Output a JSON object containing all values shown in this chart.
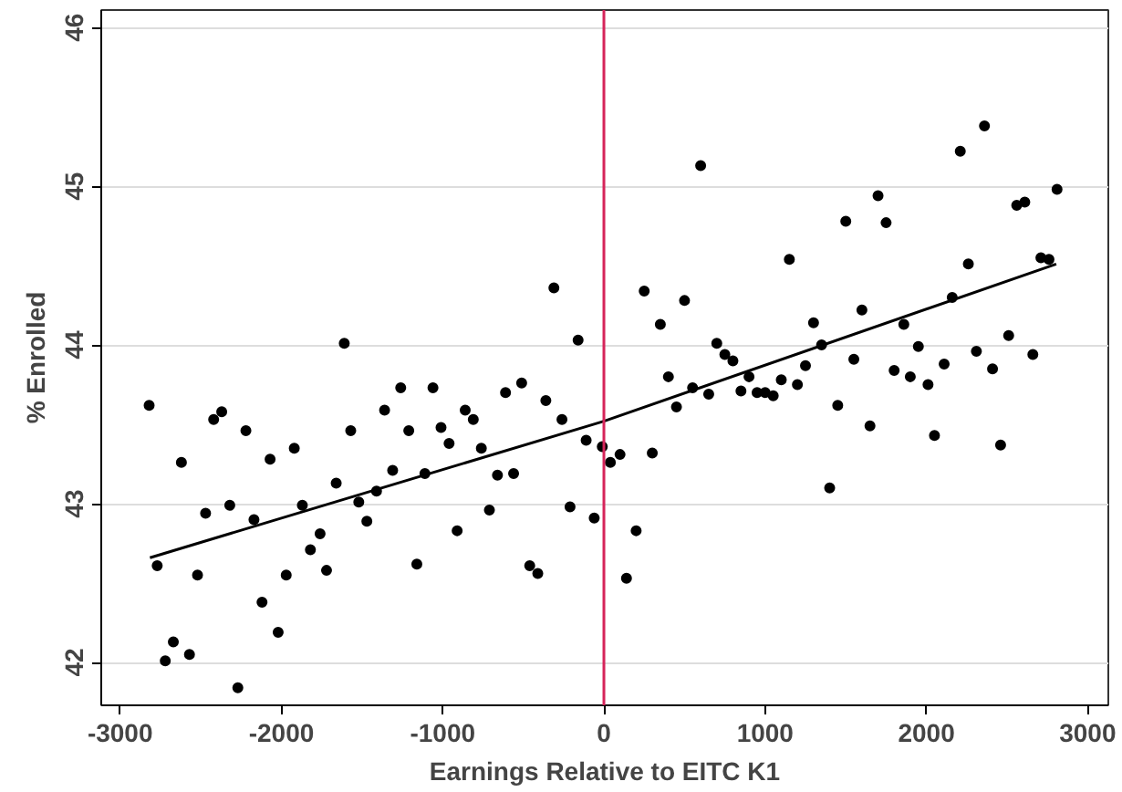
{
  "chart_data": {
    "type": "scatter",
    "xlabel": "Earnings Relative to EITC K1",
    "ylabel": "% Enrolled",
    "xlim": [
      -3117,
      3128
    ],
    "ylim": [
      41.73,
      46.11
    ],
    "xticks": [
      -3000,
      -2000,
      -1000,
      0,
      1000,
      2000,
      3000
    ],
    "yticks": [
      42,
      43,
      44,
      45,
      46
    ],
    "grid": "y",
    "ref_lines": [
      {
        "axis": "x",
        "value": 0,
        "color": "#d6245a"
      }
    ],
    "series": [
      {
        "color": "#000000",
        "marker": "circle",
        "x": [
          -2820,
          -2770,
          -2720,
          -2670,
          -2620,
          -2570,
          -2520,
          -2470,
          -2420,
          -2370,
          -2320,
          -2270,
          -2220,
          -2170,
          -2120,
          -2070,
          -2020,
          -1970,
          -1920,
          -1870,
          -1820,
          -1760,
          -1720,
          -1660,
          -1610,
          -1570,
          -1520,
          -1470,
          -1410,
          -1360,
          -1310,
          -1260,
          -1210,
          -1160,
          -1110,
          -1060,
          -1010,
          -960,
          -910,
          -860,
          -810,
          -760,
          -710,
          -660,
          -610,
          -560,
          -510,
          -460,
          -410,
          -360,
          -310,
          -260,
          -210,
          -160,
          -110,
          -60,
          -10,
          40,
          100,
          140,
          200,
          250,
          300,
          350,
          400,
          450,
          500,
          550,
          600,
          650,
          700,
          750,
          800,
          850,
          900,
          950,
          1000,
          1050,
          1100,
          1150,
          1200,
          1250,
          1300,
          1350,
          1400,
          1450,
          1500,
          1550,
          1600,
          1650,
          1700,
          1750,
          1800,
          1860,
          1900,
          1950,
          2010,
          2050,
          2110,
          2160,
          2210,
          2260,
          2310,
          2360,
          2410,
          2460,
          2510,
          2560,
          2610,
          2660,
          2710,
          2760,
          2810
        ],
        "values": [
          43.62,
          42.61,
          42.01,
          42.13,
          43.26,
          42.05,
          42.55,
          42.94,
          43.53,
          43.58,
          42.99,
          41.84,
          43.46,
          42.9,
          42.38,
          43.28,
          42.19,
          42.55,
          43.35,
          42.99,
          42.71,
          42.81,
          42.58,
          43.13,
          44.01,
          43.46,
          43.01,
          42.89,
          43.08,
          43.59,
          43.21,
          43.73,
          43.46,
          42.62,
          43.19,
          43.73,
          43.48,
          43.38,
          42.83,
          43.59,
          43.53,
          43.35,
          42.96,
          43.18,
          43.7,
          43.19,
          43.76,
          42.61,
          42.56,
          43.65,
          44.36,
          43.53,
          42.98,
          44.03,
          43.4,
          42.91,
          43.36,
          43.26,
          43.31,
          42.53,
          42.83,
          44.34,
          43.32,
          44.13,
          43.8,
          43.61,
          44.28,
          43.73,
          45.13,
          43.69,
          44.01,
          43.94,
          43.9,
          43.71,
          43.8,
          43.7,
          43.7,
          43.68,
          43.78,
          44.54,
          43.75,
          43.87,
          44.14,
          44.0,
          43.1,
          43.62,
          44.78,
          43.91,
          44.22,
          43.49,
          44.94,
          44.77,
          43.84,
          44.13,
          43.8,
          43.99,
          43.75,
          43.43,
          43.88,
          44.3,
          45.22,
          44.51,
          43.96,
          45.38,
          43.85,
          43.37,
          44.06,
          44.88,
          44.9,
          43.94,
          44.55,
          44.54,
          44.98
        ]
      },
      {
        "type": "line",
        "marker": "none",
        "color": "#000000",
        "x": [
          -2815,
          0,
          2805
        ],
        "values": [
          42.66,
          43.52,
          44.51
        ]
      }
    ]
  }
}
